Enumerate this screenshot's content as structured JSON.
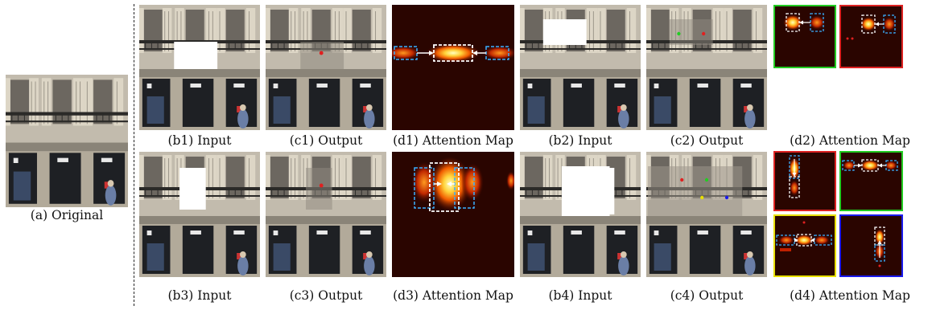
{
  "figure": {
    "original_caption": "(a) Original",
    "row1": {
      "input_caption": "(b1) Input",
      "output_caption": "(c1) Output",
      "attention_caption": "(d1) Attention Map",
      "input2_caption": "(b2) Input",
      "output2_caption": "(c2) Output",
      "attention2_caption": "(d2) Attention Map"
    },
    "row2": {
      "input_caption": "(b3) Input",
      "output_caption": "(c3) Output",
      "attention_caption": "(d3) Attention Map",
      "input2_caption": "(b4) Input",
      "output2_caption": "(c4) Output",
      "attention2_caption": "(d4) Attention Map"
    },
    "frame_colors": {
      "green": "#22cc22",
      "red": "#dd2222",
      "yellow": "#e8e000",
      "blue": "#1a1aee"
    },
    "box_colors": {
      "target": "#ffffff",
      "source": "#3ab0ff"
    }
  }
}
